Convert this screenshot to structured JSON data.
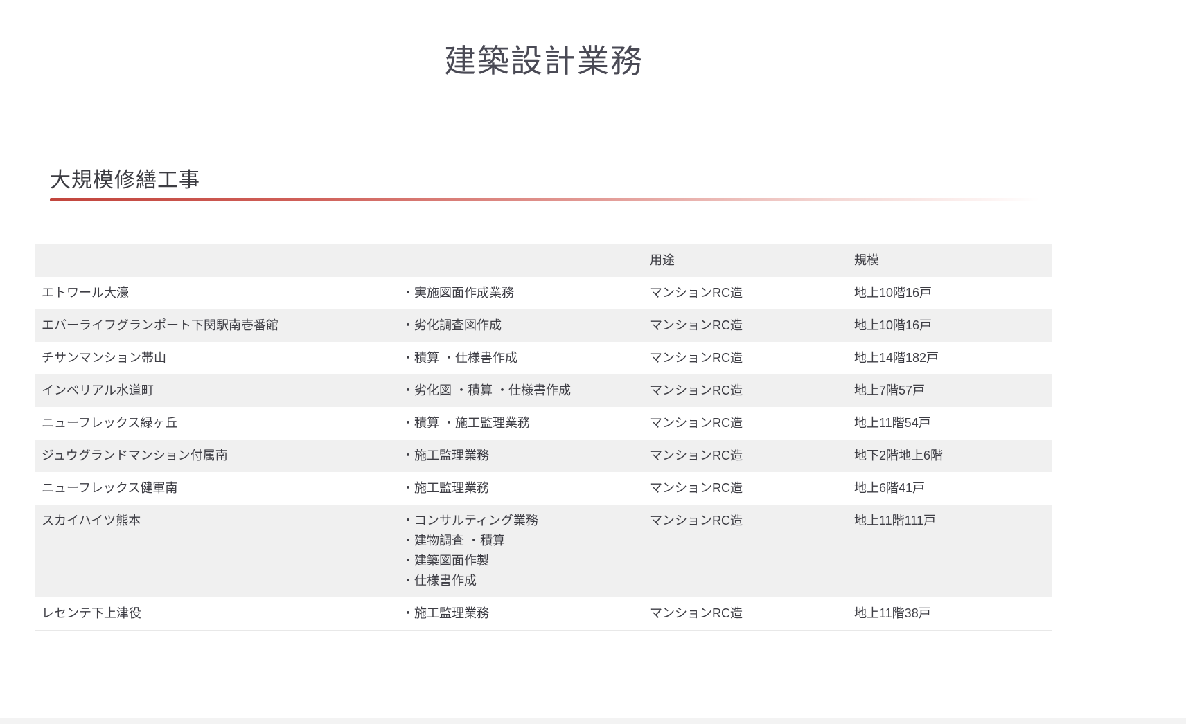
{
  "page": {
    "title": "建築設計業務"
  },
  "section": {
    "heading": "大規模修繕工事",
    "accent_color": "#c2453d"
  },
  "table": {
    "headers": {
      "name": "",
      "services": "",
      "use": "用途",
      "scale": "規模"
    },
    "rows": [
      {
        "name": "エトワール大濠",
        "services": "・実施図面作成業務",
        "use": "マンションRC造",
        "scale": "地上10階16戸"
      },
      {
        "name": "エバーライフグランポート下関駅南壱番館",
        "services": "・劣化調査図作成",
        "use": "マンションRC造",
        "scale": "地上10階16戸"
      },
      {
        "name": "チサンマンション帯山",
        "services": "・積算 ・仕様書作成",
        "use": "マンションRC造",
        "scale": "地上14階182戸"
      },
      {
        "name": "インペリアル水道町",
        "services": "・劣化図 ・積算 ・仕様書作成",
        "use": "マンションRC造",
        "scale": "地上7階57戸"
      },
      {
        "name": "ニューフレックス緑ヶ丘",
        "services": "・積算 ・施工監理業務",
        "use": "マンションRC造",
        "scale": "地上11階54戸"
      },
      {
        "name": "ジュウグランドマンション付属南",
        "services": "・施工監理業務",
        "use": "マンションRC造",
        "scale": "地下2階地上6階"
      },
      {
        "name": "ニューフレックス健軍南",
        "services": "・施工監理業務",
        "use": "マンションRC造",
        "scale": "地上6階41戸"
      },
      {
        "name": "スカイハイツ熊本",
        "services": "・コンサルティング業務\n・建物調査 ・積算\n・建築図面作製\n・仕様書作成",
        "use": "マンションRC造",
        "scale": "地上11階111戸"
      },
      {
        "name": "レセンテ下上津役",
        "services": "・施工監理業務",
        "use": "マンションRC造",
        "scale": "地上11階38戸"
      }
    ]
  }
}
